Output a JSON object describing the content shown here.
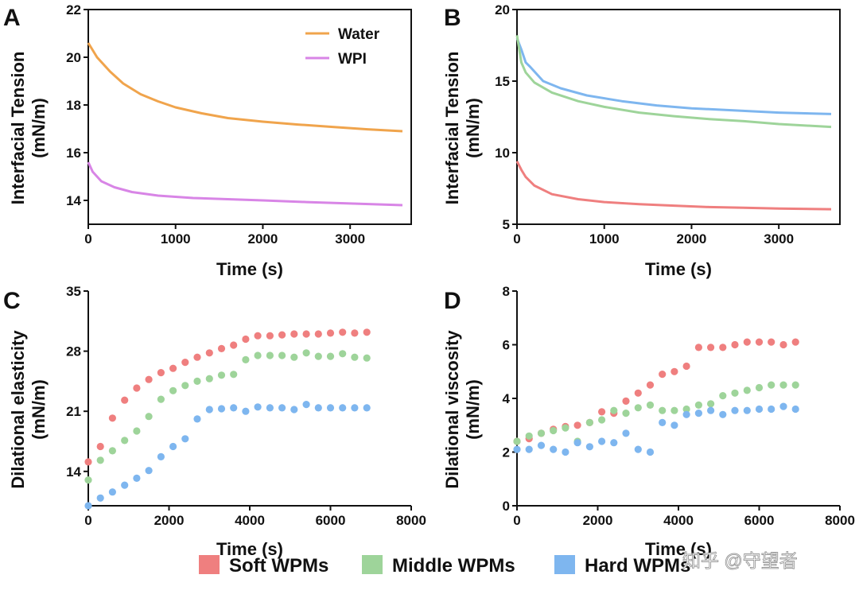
{
  "chart_data": [
    {
      "panel": "A",
      "type": "line",
      "xlabel": "Time (s)",
      "ylabel": "Interfacial Tension",
      "ylabel_unit": "(mN/m)",
      "xlim": [
        0,
        3700
      ],
      "ylim": [
        13,
        22
      ],
      "xticks": [
        "0",
        "1000",
        "2000",
        "3000"
      ],
      "yticks": [
        "14",
        "16",
        "18",
        "20",
        "22"
      ],
      "legend_position": "top-right",
      "series": [
        {
          "name": "Water",
          "color": "#f0a44c",
          "x": [
            0,
            100,
            250,
            400,
            600,
            800,
            1000,
            1300,
            1600,
            2000,
            2400,
            2800,
            3200,
            3600
          ],
          "y": [
            20.6,
            20.0,
            19.4,
            18.9,
            18.45,
            18.15,
            17.9,
            17.65,
            17.45,
            17.3,
            17.18,
            17.08,
            16.98,
            16.9
          ]
        },
        {
          "name": "WPI",
          "color": "#d885e6",
          "x": [
            0,
            50,
            150,
            300,
            500,
            800,
            1200,
            1600,
            2000,
            2500,
            3000,
            3600
          ],
          "y": [
            15.6,
            15.2,
            14.8,
            14.55,
            14.35,
            14.2,
            14.1,
            14.05,
            14.0,
            13.93,
            13.87,
            13.8
          ]
        }
      ]
    },
    {
      "panel": "B",
      "type": "line",
      "xlabel": "Time (s)",
      "ylabel": "Interfacial Tension",
      "ylabel_unit": "(mN/m)",
      "xlim": [
        0,
        3700
      ],
      "ylim": [
        5,
        20
      ],
      "xticks": [
        "0",
        "1000",
        "2000",
        "3000"
      ],
      "yticks": [
        "5",
        "10",
        "15",
        "20"
      ],
      "series": [
        {
          "name": "Hard WPMs",
          "color": "#7eb6ef",
          "x": [
            0,
            50,
            100,
            150,
            300,
            500,
            800,
            1200,
            1600,
            2000,
            2500,
            3000,
            3600
          ],
          "y": [
            18.0,
            17.2,
            16.3,
            16.0,
            15.0,
            14.5,
            14.0,
            13.6,
            13.3,
            13.1,
            12.95,
            12.8,
            12.7
          ]
        },
        {
          "name": "Middle WPMs",
          "color": "#9ed49a",
          "x": [
            0,
            50,
            100,
            200,
            400,
            700,
            1000,
            1400,
            1800,
            2200,
            2600,
            3000,
            3600
          ],
          "y": [
            18.2,
            16.3,
            15.6,
            14.9,
            14.2,
            13.6,
            13.2,
            12.8,
            12.55,
            12.35,
            12.2,
            12.0,
            11.8
          ]
        },
        {
          "name": "Soft WPMs",
          "color": "#ef7f7f",
          "x": [
            0,
            50,
            100,
            200,
            400,
            700,
            1000,
            1400,
            1800,
            2200,
            2600,
            3000,
            3600
          ],
          "y": [
            9.4,
            8.8,
            8.3,
            7.7,
            7.1,
            6.75,
            6.55,
            6.4,
            6.3,
            6.2,
            6.15,
            6.1,
            6.05
          ]
        }
      ]
    },
    {
      "panel": "C",
      "type": "scatter",
      "xlabel": "Time (s)",
      "ylabel": "Dilational elasticity",
      "ylabel_unit": "(mN/m)",
      "xlim": [
        0,
        8000
      ],
      "ylim": [
        10,
        35
      ],
      "xticks": [
        "0",
        "2000",
        "4000",
        "6000",
        "8000"
      ],
      "yticks": [
        "14",
        "21",
        "28",
        "35"
      ],
      "series": [
        {
          "name": "Soft WPMs",
          "color": "#ef7f7f",
          "x": [
            0,
            300,
            600,
            900,
            1200,
            1500,
            1800,
            2100,
            2400,
            2700,
            3000,
            3300,
            3600,
            3900,
            4200,
            4500,
            4800,
            5100,
            5400,
            5700,
            6000,
            6300,
            6600,
            6900
          ],
          "y": [
            15.1,
            16.9,
            20.2,
            22.3,
            23.7,
            24.7,
            25.5,
            26.0,
            26.7,
            27.3,
            27.8,
            28.3,
            28.7,
            29.4,
            29.8,
            29.8,
            29.9,
            30.0,
            30.0,
            30.0,
            30.1,
            30.2,
            30.1,
            30.2
          ]
        },
        {
          "name": "Middle WPMs",
          "color": "#9ed49a",
          "x": [
            0,
            300,
            600,
            900,
            1200,
            1500,
            1800,
            2100,
            2400,
            2700,
            3000,
            3300,
            3600,
            3900,
            4200,
            4500,
            4800,
            5100,
            5400,
            5700,
            6000,
            6300,
            6600,
            6900
          ],
          "y": [
            13.0,
            15.3,
            16.4,
            17.6,
            18.7,
            20.4,
            22.4,
            23.4,
            24.0,
            24.5,
            24.8,
            25.2,
            25.3,
            27.0,
            27.5,
            27.5,
            27.5,
            27.3,
            27.8,
            27.4,
            27.4,
            27.7,
            27.3,
            27.2
          ]
        },
        {
          "name": "Hard WPMs",
          "color": "#7eb6ef",
          "x": [
            0,
            300,
            600,
            900,
            1200,
            1500,
            1800,
            2100,
            2400,
            2700,
            3000,
            3300,
            3600,
            3900,
            4200,
            4500,
            4800,
            5100,
            5400,
            5700,
            6000,
            6300,
            6600,
            6900
          ],
          "y": [
            10.0,
            10.9,
            11.6,
            12.4,
            13.2,
            14.1,
            15.7,
            16.9,
            17.8,
            20.1,
            21.2,
            21.3,
            21.4,
            21.0,
            21.5,
            21.4,
            21.4,
            21.2,
            21.8,
            21.4,
            21.4,
            21.4,
            21.4,
            21.4
          ]
        }
      ]
    },
    {
      "panel": "D",
      "type": "scatter",
      "xlabel": "Time (s)",
      "ylabel": "Dilational viscosity",
      "ylabel_unit": "(mN/m)",
      "xlim": [
        0,
        8000
      ],
      "ylim": [
        0,
        8
      ],
      "xticks": [
        "0",
        "2000",
        "4000",
        "6000",
        "8000"
      ],
      "yticks": [
        "0",
        "2",
        "4",
        "6",
        "8"
      ],
      "series": [
        {
          "name": "Soft WPMs",
          "color": "#ef7f7f",
          "x": [
            0,
            300,
            600,
            900,
            1200,
            1500,
            1800,
            2100,
            2400,
            2700,
            3000,
            3300,
            3600,
            3900,
            4200,
            4500,
            4800,
            5100,
            5400,
            5700,
            6000,
            6300,
            6600,
            6900
          ],
          "y": [
            2.4,
            2.5,
            2.7,
            2.85,
            2.95,
            3.0,
            3.1,
            3.5,
            3.45,
            3.9,
            4.2,
            4.5,
            4.9,
            5.0,
            5.2,
            5.9,
            5.9,
            5.9,
            6.0,
            6.1,
            6.1,
            6.1,
            6.0,
            6.1
          ]
        },
        {
          "name": "Middle WPMs",
          "color": "#9ed49a",
          "x": [
            0,
            300,
            600,
            900,
            1200,
            1500,
            1800,
            2100,
            2400,
            2700,
            3000,
            3300,
            3600,
            3900,
            4200,
            4500,
            4800,
            5100,
            5400,
            5700,
            6000,
            6300,
            6600,
            6900
          ],
          "y": [
            2.4,
            2.6,
            2.7,
            2.8,
            2.9,
            2.4,
            3.1,
            3.2,
            3.55,
            3.45,
            3.65,
            3.75,
            3.55,
            3.55,
            3.6,
            3.75,
            3.8,
            4.1,
            4.2,
            4.3,
            4.4,
            4.5,
            4.5,
            4.5
          ]
        },
        {
          "name": "Hard WPMs",
          "color": "#7eb6ef",
          "x": [
            0,
            300,
            600,
            900,
            1200,
            1500,
            1800,
            2100,
            2400,
            2700,
            3000,
            3300,
            3600,
            3900,
            4200,
            4500,
            4800,
            5100,
            5400,
            5700,
            6000,
            6300,
            6600,
            6900
          ],
          "y": [
            2.1,
            2.1,
            2.25,
            2.1,
            2.0,
            2.35,
            2.2,
            2.4,
            2.35,
            2.7,
            2.1,
            2.0,
            3.1,
            3.0,
            3.4,
            3.45,
            3.55,
            3.4,
            3.55,
            3.55,
            3.6,
            3.6,
            3.7,
            3.6
          ]
        }
      ]
    }
  ],
  "legend": [
    {
      "label": "Soft WPMs",
      "color": "#ef7f7f"
    },
    {
      "label": "Middle WPMs",
      "color": "#9ed49a"
    },
    {
      "label": "Hard WPMs",
      "color": "#7eb6ef"
    }
  ],
  "watermark": "知乎 @守望者"
}
